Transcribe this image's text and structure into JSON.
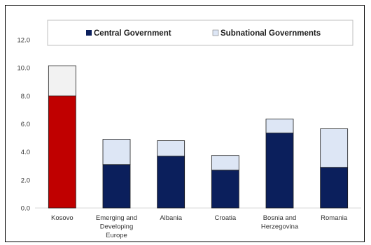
{
  "chart_data": {
    "type": "bar",
    "stacked": true,
    "categories": [
      [
        "Kosovo"
      ],
      [
        "Emerging and",
        "Developing",
        "Europe"
      ],
      [
        "Albania"
      ],
      [
        "Croatia"
      ],
      [
        "Bosnia and",
        "Herzegovina"
      ],
      [
        "Romania"
      ]
    ],
    "series": [
      {
        "name": "Central Government",
        "values": [
          8.0,
          3.1,
          3.7,
          2.7,
          5.35,
          2.9
        ],
        "color": "#0b1f5c",
        "highlight": {
          "index": 0,
          "color": "#c00000"
        }
      },
      {
        "name": "Subnational Governments",
        "values": [
          2.15,
          1.8,
          1.1,
          1.05,
          1.0,
          2.75
        ],
        "color": "#dde6f5",
        "highlight": {
          "index": 0,
          "color": "#f2f2f2"
        }
      }
    ],
    "ylim": [
      0,
      12
    ],
    "yticks": [
      "0.0",
      "2.0",
      "4.0",
      "6.0",
      "8.0",
      "10.0",
      "12.0"
    ],
    "grid": false,
    "legend": "top"
  }
}
